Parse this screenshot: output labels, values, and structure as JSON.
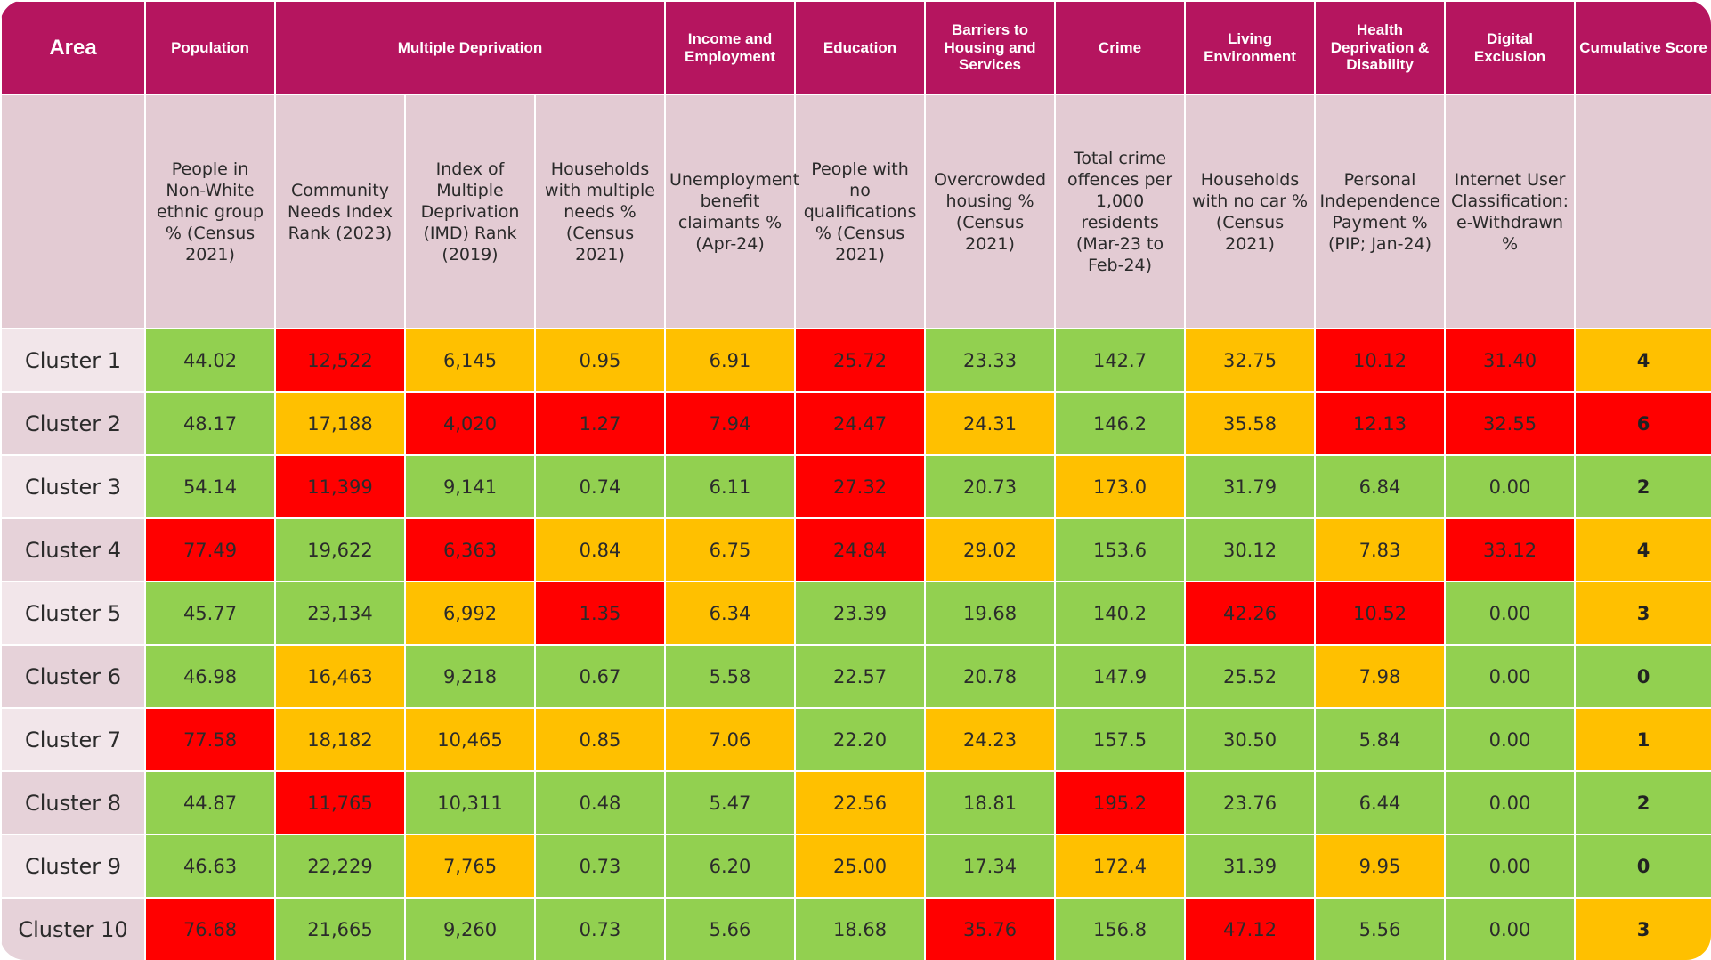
{
  "header": {
    "area": "Area",
    "population": "Population",
    "multiple_deprivation": "Multiple Deprivation",
    "income_employment": "Income and Employment",
    "education": "Education",
    "barriers": "Barriers to Housing and Services",
    "crime": "Crime",
    "living_environment": "Living Environment",
    "health": "Health Deprivation & Disability",
    "digital": "Digital Exclusion",
    "cumulative": "Cumulative Score"
  },
  "indicators": [
    "People in Non-White ethnic group % (Census 2021)",
    "Community Needs Index Rank (2023)",
    "Index of Multiple Deprivation (IMD) Rank (2019)",
    "Households with multiple needs % (Census 2021)",
    "Unemployment benefit claimants % (Apr-24)",
    "People with no qualifications % (Census 2021)",
    "Overcrowded housing % (Census 2021)",
    "Total crime offences per 1,000 residents (Mar-23 to Feb-24)",
    "Households with no car % (Census 2021)",
    "Personal Independence Payment % (PIP; Jan-24)",
    "Internet User Classification: e-Withdrawn %"
  ],
  "rag_colors": {
    "green": "#92d050",
    "amber": "#ffc000",
    "red": "#ff0000",
    "header": "#b5155f",
    "subheader": "#e3cbd3"
  },
  "rows": [
    {
      "area": "Cluster 1",
      "values": [
        "44.02",
        "12,522",
        "6,145",
        "0.95",
        "6.91",
        "25.72",
        "23.33",
        "142.7",
        "32.75",
        "10.12",
        "31.40"
      ],
      "rag": [
        "g",
        "r",
        "a",
        "a",
        "a",
        "r",
        "g",
        "g",
        "a",
        "r",
        "r"
      ],
      "score": "4",
      "score_rag": "a"
    },
    {
      "area": "Cluster 2",
      "values": [
        "48.17",
        "17,188",
        "4,020",
        "1.27",
        "7.94",
        "24.47",
        "24.31",
        "146.2",
        "35.58",
        "12.13",
        "32.55"
      ],
      "rag": [
        "g",
        "a",
        "r",
        "r",
        "r",
        "r",
        "a",
        "g",
        "a",
        "r",
        "r"
      ],
      "score": "6",
      "score_rag": "r"
    },
    {
      "area": "Cluster 3",
      "values": [
        "54.14",
        "11,399",
        "9,141",
        "0.74",
        "6.11",
        "27.32",
        "20.73",
        "173.0",
        "31.79",
        "6.84",
        "0.00"
      ],
      "rag": [
        "g",
        "r",
        "g",
        "g",
        "g",
        "r",
        "g",
        "a",
        "g",
        "g",
        "g"
      ],
      "score": "2",
      "score_rag": "g"
    },
    {
      "area": "Cluster 4",
      "values": [
        "77.49",
        "19,622",
        "6,363",
        "0.84",
        "6.75",
        "24.84",
        "29.02",
        "153.6",
        "30.12",
        "7.83",
        "33.12"
      ],
      "rag": [
        "r",
        "g",
        "r",
        "a",
        "a",
        "r",
        "a",
        "g",
        "g",
        "a",
        "r"
      ],
      "score": "4",
      "score_rag": "a"
    },
    {
      "area": "Cluster 5",
      "values": [
        "45.77",
        "23,134",
        "6,992",
        "1.35",
        "6.34",
        "23.39",
        "19.68",
        "140.2",
        "42.26",
        "10.52",
        "0.00"
      ],
      "rag": [
        "g",
        "g",
        "a",
        "r",
        "a",
        "g",
        "g",
        "g",
        "r",
        "r",
        "g"
      ],
      "score": "3",
      "score_rag": "a"
    },
    {
      "area": "Cluster 6",
      "values": [
        "46.98",
        "16,463",
        "9,218",
        "0.67",
        "5.58",
        "22.57",
        "20.78",
        "147.9",
        "25.52",
        "7.98",
        "0.00"
      ],
      "rag": [
        "g",
        "a",
        "g",
        "g",
        "g",
        "g",
        "g",
        "g",
        "g",
        "a",
        "g"
      ],
      "score": "0",
      "score_rag": "g"
    },
    {
      "area": "Cluster 7",
      "values": [
        "77.58",
        "18,182",
        "10,465",
        "0.85",
        "7.06",
        "22.20",
        "24.23",
        "157.5",
        "30.50",
        "5.84",
        "0.00"
      ],
      "rag": [
        "r",
        "a",
        "a",
        "a",
        "a",
        "g",
        "a",
        "g",
        "g",
        "g",
        "g"
      ],
      "score": "1",
      "score_rag": "a"
    },
    {
      "area": "Cluster 8",
      "values": [
        "44.87",
        "11,765",
        "10,311",
        "0.48",
        "5.47",
        "22.56",
        "18.81",
        "195.2",
        "23.76",
        "6.44",
        "0.00"
      ],
      "rag": [
        "g",
        "r",
        "g",
        "g",
        "g",
        "a",
        "g",
        "r",
        "g",
        "g",
        "g"
      ],
      "score": "2",
      "score_rag": "g"
    },
    {
      "area": "Cluster 9",
      "values": [
        "46.63",
        "22,229",
        "7,765",
        "0.73",
        "6.20",
        "25.00",
        "17.34",
        "172.4",
        "31.39",
        "9.95",
        "0.00"
      ],
      "rag": [
        "g",
        "g",
        "a",
        "g",
        "g",
        "a",
        "g",
        "a",
        "g",
        "a",
        "g"
      ],
      "score": "0",
      "score_rag": "g"
    },
    {
      "area": "Cluster 10",
      "values": [
        "76.68",
        "21,665",
        "9,260",
        "0.73",
        "5.66",
        "18.68",
        "35.76",
        "156.8",
        "47.12",
        "5.56",
        "0.00"
      ],
      "rag": [
        "r",
        "g",
        "g",
        "g",
        "g",
        "g",
        "r",
        "g",
        "r",
        "g",
        "g"
      ],
      "score": "3",
      "score_rag": "a"
    }
  ]
}
